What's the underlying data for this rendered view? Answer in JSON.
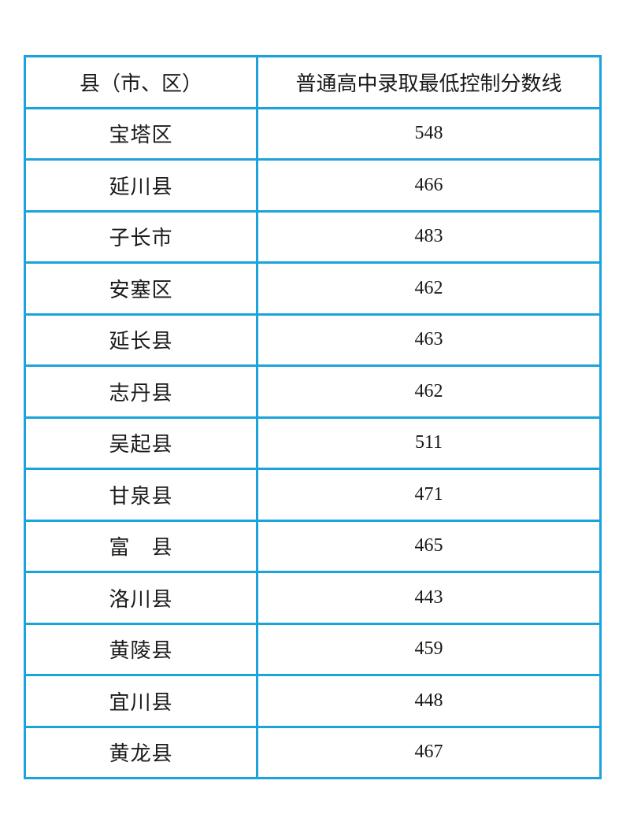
{
  "table": {
    "headers": [
      "县（市、区）",
      "普通高中录取最低控制分数线"
    ],
    "rows": [
      {
        "county": "宝塔区",
        "score": "548"
      },
      {
        "county": "延川县",
        "score": "466"
      },
      {
        "county": "子长市",
        "score": "483"
      },
      {
        "county": "安塞区",
        "score": "462"
      },
      {
        "county": "延长县",
        "score": "463"
      },
      {
        "county": "志丹县",
        "score": "462"
      },
      {
        "county": "吴起县",
        "score": "511"
      },
      {
        "county": "甘泉县",
        "score": "471"
      },
      {
        "county": "富　县",
        "score": "465"
      },
      {
        "county": "洛川县",
        "score": "443"
      },
      {
        "county": "黄陵县",
        "score": "459"
      },
      {
        "county": "宜川县",
        "score": "448"
      },
      {
        "county": "黄龙县",
        "score": "467"
      }
    ]
  },
  "colors": {
    "border": "#1ba3dc",
    "text": "#1a1a1a"
  }
}
